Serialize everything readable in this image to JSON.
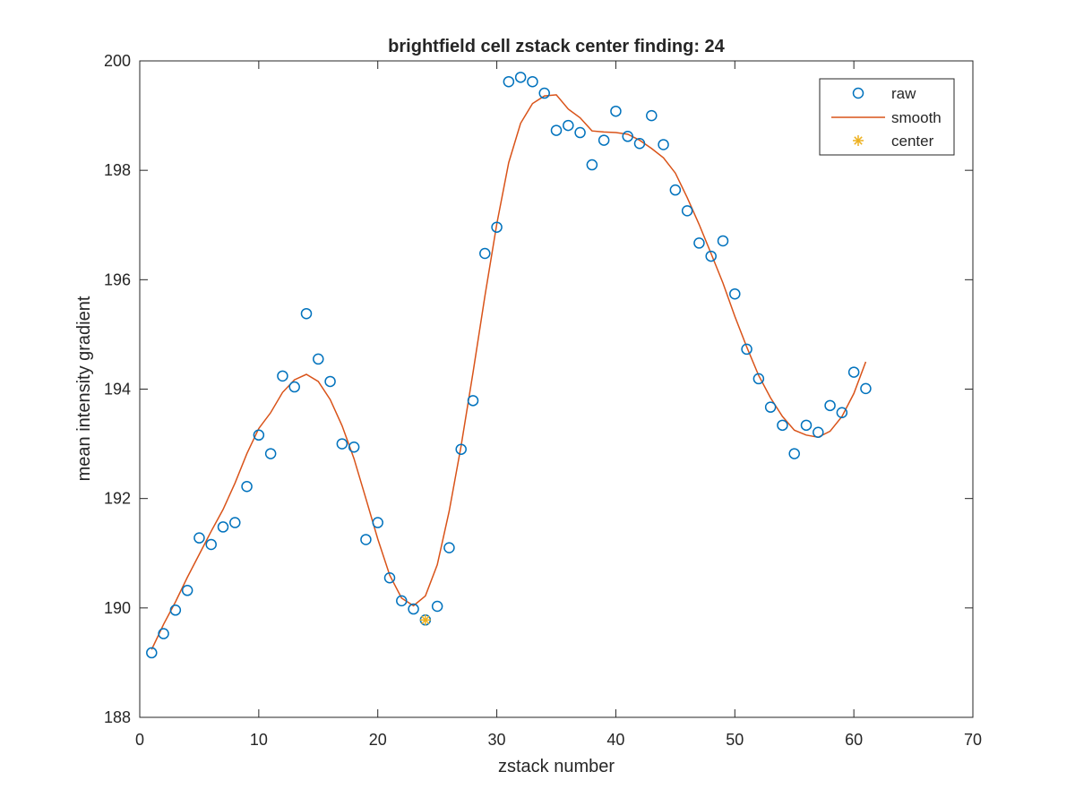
{
  "chart_data": {
    "type": "scatter",
    "title": "brightfield cell zstack center finding: 24",
    "xlabel": "zstack number",
    "ylabel": "mean intensity gradient",
    "xlim": [
      0,
      70
    ],
    "ylim": [
      188,
      200
    ],
    "xticks": [
      0,
      10,
      20,
      30,
      40,
      50,
      60,
      70
    ],
    "yticks": [
      188,
      190,
      192,
      194,
      196,
      198,
      200
    ],
    "grid": false,
    "legend_position": "top-right",
    "legend": [
      "raw",
      "smooth",
      "center"
    ],
    "series": [
      {
        "name": "raw",
        "style": "circle-marker",
        "color": "#0072BD",
        "x": [
          1,
          2,
          3,
          4,
          5,
          6,
          7,
          8,
          9,
          10,
          11,
          12,
          13,
          14,
          15,
          16,
          17,
          18,
          19,
          20,
          21,
          22,
          23,
          24,
          25,
          26,
          27,
          28,
          29,
          30,
          31,
          32,
          33,
          34,
          35,
          36,
          37,
          38,
          39,
          40,
          41,
          42,
          43,
          44,
          45,
          46,
          47,
          48,
          49,
          50,
          51,
          52,
          53,
          54,
          55,
          56,
          57,
          58,
          59,
          60,
          61
        ],
        "y": [
          189.18,
          189.53,
          189.96,
          190.32,
          191.28,
          191.16,
          191.48,
          191.56,
          192.22,
          193.16,
          192.82,
          194.24,
          194.04,
          195.38,
          194.55,
          194.14,
          193.0,
          192.94,
          191.25,
          191.56,
          190.55,
          190.13,
          189.98,
          189.78,
          190.03,
          191.1,
          192.9,
          193.79,
          196.48,
          196.96,
          199.62,
          199.7,
          199.62,
          199.41,
          198.73,
          198.82,
          198.69,
          198.1,
          198.55,
          199.08,
          198.62,
          198.49,
          199.0,
          198.47,
          197.64,
          197.26,
          196.67,
          196.43,
          196.71,
          195.74,
          194.73,
          194.19,
          193.67,
          193.34,
          192.82,
          193.34,
          193.21,
          193.7,
          193.57,
          194.31,
          194.01
        ]
      },
      {
        "name": "smooth",
        "style": "line",
        "color": "#D95319",
        "x": [
          1,
          2,
          3,
          4,
          5,
          6,
          7,
          8,
          9,
          10,
          11,
          12,
          13,
          14,
          15,
          16,
          17,
          18,
          19,
          20,
          21,
          22,
          23,
          24,
          25,
          26,
          27,
          28,
          29,
          30,
          31,
          32,
          33,
          34,
          35,
          36,
          37,
          38,
          39,
          40,
          41,
          42,
          43,
          44,
          45,
          46,
          47,
          48,
          49,
          50,
          51,
          52,
          53,
          54,
          55,
          56,
          57,
          58,
          59,
          60,
          61
        ],
        "y": [
          189.24,
          189.7,
          190.11,
          190.56,
          190.98,
          191.4,
          191.8,
          192.28,
          192.82,
          193.28,
          193.57,
          193.94,
          194.17,
          194.27,
          194.14,
          193.81,
          193.33,
          192.73,
          192.0,
          191.26,
          190.6,
          190.18,
          190.04,
          190.22,
          190.79,
          191.77,
          192.96,
          194.3,
          195.7,
          197.02,
          198.14,
          198.86,
          199.22,
          199.36,
          199.38,
          199.12,
          198.96,
          198.72,
          198.7,
          198.69,
          198.66,
          198.55,
          198.4,
          198.23,
          197.95,
          197.5,
          197.01,
          196.48,
          195.94,
          195.33,
          194.77,
          194.25,
          193.84,
          193.5,
          193.25,
          193.16,
          193.12,
          193.23,
          193.5,
          193.92,
          194.5
        ]
      },
      {
        "name": "center",
        "style": "asterisk-marker",
        "color": "#EDB120",
        "x": [
          24
        ],
        "y": [
          189.78
        ]
      }
    ]
  }
}
